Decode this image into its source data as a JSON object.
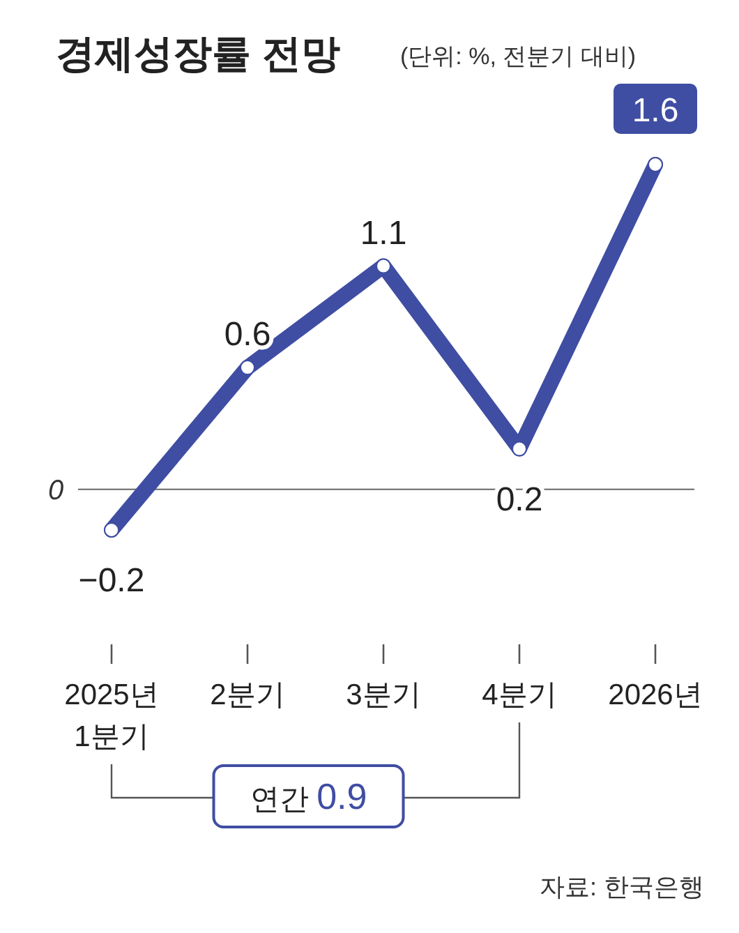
{
  "chart_data": {
    "type": "line",
    "title": "경제성장률 전망",
    "subtitle": "(단위: %, 전분기 대비)",
    "categories": [
      "2025년\n1분기",
      "2분기",
      "3분기",
      "4분기",
      "2026년"
    ],
    "series": [
      {
        "color": "#3f4da3",
        "values": [
          -0.2,
          0.6,
          1.1,
          0.2,
          1.6
        ]
      }
    ],
    "ref_lines": [
      {
        "axis": "y",
        "value": 0,
        "label": "0",
        "color": "#666666"
      }
    ],
    "data_labels": true,
    "marker": "circle",
    "annotations": [
      "연간 0.9",
      "자료: 한국은행"
    ]
  }
}
